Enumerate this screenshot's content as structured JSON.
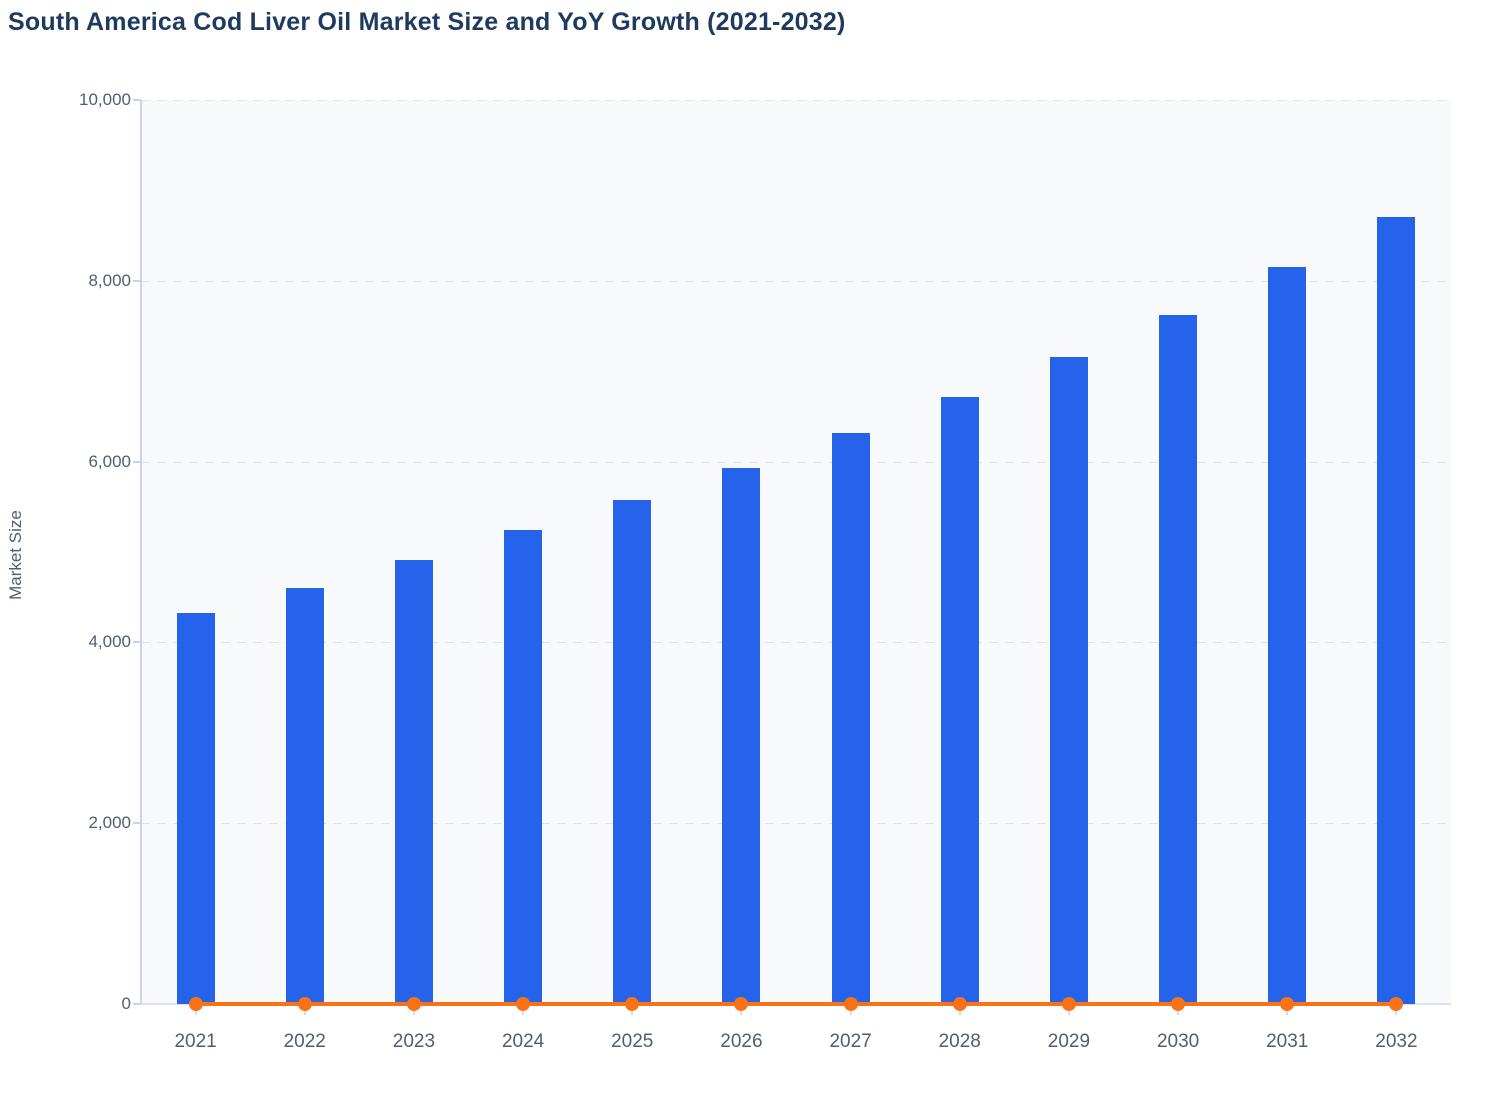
{
  "title": "South America Cod Liver Oil Market Size and YoY Growth (2021-2032)",
  "colors": {
    "title_text": "#1e3a5f",
    "axis_text": "#525e6e",
    "bar_blue": "#2563eb",
    "line_orange": "#f97316",
    "plot_background": "#f8f9fb",
    "axis_line": "#c9d3ee",
    "gridline": "#e1e3ea"
  },
  "chart_data": {
    "type": "bar",
    "title": "South America Cod Liver Oil Market Size and YoY Growth (2021-2032)",
    "categories": [
      "2021",
      "2022",
      "2023",
      "2024",
      "2025",
      "2026",
      "2027",
      "2028",
      "2029",
      "2030",
      "2031",
      "2032"
    ],
    "series": [
      {
        "name": "Market Size",
        "type": "bar",
        "color": "#2563eb",
        "values": [
          4330,
          4600,
          4910,
          5240,
          5570,
          5930,
          6320,
          6720,
          7160,
          7620,
          8150,
          8710
        ]
      },
      {
        "name": "YoY Growth",
        "type": "line",
        "color": "#f97316",
        "values": [
          0,
          0,
          0,
          0,
          0,
          0,
          0,
          0,
          0,
          0,
          0,
          0
        ],
        "note": "line with circular markers renders flat at ~0 on the Market Size axis"
      }
    ],
    "xlabel": "",
    "ylabel": "Market Size",
    "ylim": [
      0,
      10000
    ],
    "yticks": [
      0,
      2000,
      4000,
      6000,
      8000,
      10000
    ],
    "ytick_labels": [
      "0",
      "2,000",
      "4,000",
      "6,000",
      "8,000",
      "10,000"
    ],
    "grid": "horizontal-dashed",
    "legend": "none"
  }
}
